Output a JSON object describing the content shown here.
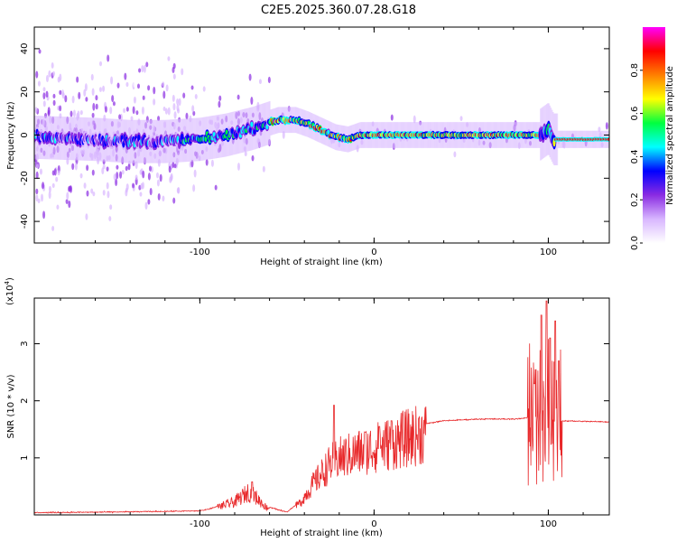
{
  "title": "C2E5.2025.360.07.28.G18",
  "chart_data": [
    {
      "type": "heatmap",
      "name": "spectrogram",
      "xlabel": "Height of straight line (km)",
      "ylabel": "Frequency (Hz)",
      "xlim": [
        -195,
        135
      ],
      "ylim": [
        -50,
        50
      ],
      "xticks": [
        -100,
        0,
        100
      ],
      "xtick_labels": [
        "-100",
        "0",
        "100"
      ],
      "yticks": [
        -40,
        -20,
        0,
        20,
        40
      ],
      "ytick_labels": [
        "-40",
        "-20",
        "0",
        "20",
        "40"
      ],
      "centerline": [
        [
          -195,
          -1
        ],
        [
          -160,
          -2
        ],
        [
          -140,
          -3
        ],
        [
          -120,
          -3
        ],
        [
          -100,
          -2
        ],
        [
          -85,
          0
        ],
        [
          -70,
          3
        ],
        [
          -55,
          7
        ],
        [
          -45,
          7
        ],
        [
          -38,
          5
        ],
        [
          -30,
          2
        ],
        [
          -22,
          -1
        ],
        [
          -15,
          -2
        ],
        [
          -8,
          0
        ],
        [
          0,
          0
        ],
        [
          10,
          0
        ],
        [
          30,
          0
        ],
        [
          60,
          0
        ],
        [
          85,
          0
        ],
        [
          95,
          0
        ],
        [
          100,
          3
        ],
        [
          103,
          -2
        ],
        [
          135,
          -2
        ]
      ],
      "colorbar": {
        "label": "Normalized spectral amplitude",
        "range": [
          0,
          1
        ],
        "ticks": [
          0.0,
          0.2,
          0.4,
          0.6,
          0.8
        ],
        "tick_labels": [
          "0.0",
          "0.2",
          "0.4",
          "0.6",
          "0.8"
        ],
        "colors": [
          "#ffffff",
          "#d8b6ff",
          "#8a2be2",
          "#0000ff",
          "#00ffff",
          "#00ff40",
          "#ffff00",
          "#ff7f00",
          "#ff0000",
          "#ff00ff"
        ]
      }
    },
    {
      "type": "line",
      "name": "snr",
      "xlabel": "Height of straight line (km)",
      "ylabel": "SNR (10 * v/v)",
      "y_scale_label": "(x10",
      "y_scale_exp": "4",
      "y_scale_suffix": ")",
      "xlim": [
        -195,
        135
      ],
      "ylim": [
        0,
        3.8
      ],
      "xticks": [
        -100,
        0,
        100
      ],
      "xtick_labels": [
        "-100",
        "0",
        "100"
      ],
      "yticks": [
        1,
        2,
        3
      ],
      "ytick_labels": [
        "1",
        "2",
        "3"
      ],
      "series": [
        {
          "name": "SNR",
          "color": "#e8282a",
          "envelope": [
            [
              -195,
              0.04
            ],
            [
              -150,
              0.05
            ],
            [
              -100,
              0.07
            ],
            [
              -95,
              0.1
            ],
            [
              -90,
              0.15
            ],
            [
              -80,
              0.25
            ],
            [
              -72,
              0.45
            ],
            [
              -68,
              0.35
            ],
            [
              -62,
              0.15
            ],
            [
              -50,
              0.05
            ],
            [
              -42,
              0.25
            ],
            [
              -35,
              0.6
            ],
            [
              -30,
              0.8
            ],
            [
              -25,
              1.0
            ],
            [
              -20,
              1.1
            ],
            [
              -10,
              1.2
            ],
            [
              0,
              1.3
            ],
            [
              10,
              1.4
            ],
            [
              20,
              1.5
            ],
            [
              30,
              1.6
            ],
            [
              40,
              1.65
            ],
            [
              60,
              1.68
            ],
            [
              80,
              1.68
            ],
            [
              88,
              1.7
            ],
            [
              90,
              1.7
            ],
            [
              94,
              1.7
            ],
            [
              100,
              1.7
            ],
            [
              106,
              1.65
            ],
            [
              120,
              1.64
            ],
            [
              135,
              1.63
            ]
          ],
          "peaks": [
            [
              -70,
              0.58
            ],
            [
              -23,
              1.92
            ],
            [
              -5,
              1.45
            ],
            [
              3,
              1.55
            ],
            [
              10,
              1.65
            ],
            [
              92,
              2.3
            ],
            [
              96,
              3.5
            ],
            [
              99,
              3.75
            ],
            [
              101,
              3.1
            ],
            [
              104,
              3.4
            ],
            [
              106,
              2.7
            ]
          ]
        }
      ]
    }
  ]
}
